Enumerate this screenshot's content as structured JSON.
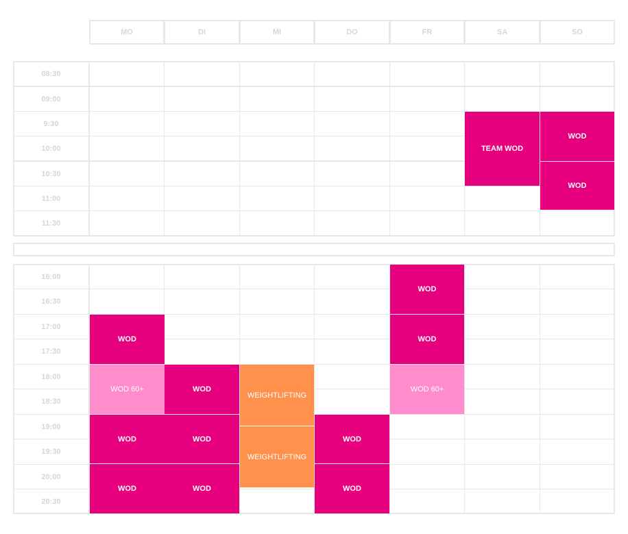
{
  "days": [
    "MO",
    "DI",
    "MI",
    "DO",
    "FR",
    "SA",
    "SO"
  ],
  "morning_times": [
    "08:30",
    "09:00",
    "9:30",
    "10:00",
    "10:30",
    "11:00",
    "11:30"
  ],
  "evening_times": [
    "16:00",
    "16:30",
    "17:00",
    "17:30",
    "18:00",
    "18:30",
    "19:00",
    "19:30",
    "20:00",
    "20:30"
  ],
  "colors": {
    "wod": "#e6007e",
    "wod60": "#ff8ccc",
    "weightlifting": "#ff914d",
    "grid": "#e8e8e8",
    "label": "#d6d6d6"
  },
  "events": {
    "sa_team_wod": "TEAM WOD",
    "so_wod_1": "WOD",
    "so_wod_2": "WOD",
    "fr_wod_1": "WOD",
    "fr_wod_2": "WOD",
    "fr_wod60": "WOD 60+",
    "mo_wod_1": "WOD",
    "mo_wod60": "WOD 60+",
    "mo_wod_2": "WOD",
    "mo_wod_3": "WOD",
    "di_wod_1": "WOD",
    "di_wod_2": "WOD",
    "di_wod_3": "WOD",
    "mi_wl_1": "WEIGHTLIFTING",
    "mi_wl_2": "WEIGHTLIFTING",
    "do_wod_1": "WOD",
    "do_wod_2": "WOD"
  }
}
